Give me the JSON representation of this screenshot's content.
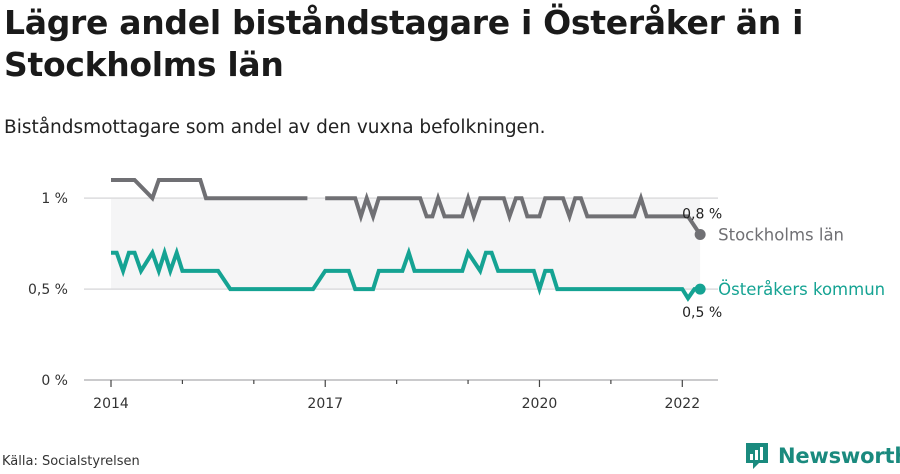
{
  "title": "Lägre andel biståndstagare i Österåker än i Stockholms län",
  "subtitle": "Biståndsmottagare som andel av den vuxna befolkningen.",
  "source": "Källa: Socialstyrelsen",
  "brand": {
    "name": "Newsworthy",
    "icon": "newsworthy-logo-icon",
    "color": "#1a8a7e"
  },
  "chart_data": {
    "type": "line",
    "xlim": [
      2014,
      2022.5
    ],
    "ylim": [
      0,
      1.1
    ],
    "x_ticks": [
      2014,
      2017,
      2020,
      2022
    ],
    "x_tick_labels": [
      "2014",
      "2017",
      "2020",
      "2022"
    ],
    "y_ticks": [
      0,
      0.5,
      1
    ],
    "y_tick_labels": [
      "0 %",
      "0,5 %",
      "1 %"
    ],
    "grid": "horizontal",
    "legend": "direct labels at line ends",
    "band": {
      "from": 0.5,
      "to": 1.0,
      "color": "#f5f5f6"
    },
    "series": [
      {
        "name": "Stockholms län",
        "color": "#707074",
        "end_label": "0,8 %",
        "x": [
          2014.0,
          2014.33,
          2014.58,
          2014.67,
          2014.75,
          2015.0,
          2015.25,
          2015.33,
          2015.5,
          2015.75,
          2016.0,
          2016.25,
          2016.5,
          2016.75,
          2016.83,
          2017.0,
          2017.08,
          2017.25,
          2017.42,
          2017.5,
          2017.58,
          2017.67,
          2017.75,
          2018.0,
          2018.25,
          2018.33,
          2018.42,
          2018.5,
          2018.58,
          2018.67,
          2018.75,
          2018.92,
          2019.0,
          2019.08,
          2019.17,
          2019.25,
          2019.5,
          2019.58,
          2019.67,
          2019.75,
          2019.83,
          2019.92,
          2020.0,
          2020.08,
          2020.17,
          2020.33,
          2020.42,
          2020.5,
          2020.58,
          2020.67,
          2020.92,
          2021.0,
          2021.08,
          2021.17,
          2021.33,
          2021.42,
          2021.5,
          2021.67,
          2021.75,
          2022.0,
          2022.08,
          2022.25
        ],
        "y": [
          1.1,
          1.1,
          1.0,
          1.1,
          1.1,
          1.1,
          1.1,
          1.0,
          1.0,
          1.0,
          1.0,
          1.0,
          1.0,
          1.0,
          null,
          1.0,
          1.0,
          1.0,
          1.0,
          0.9,
          1.0,
          0.9,
          1.0,
          1.0,
          1.0,
          1.0,
          0.9,
          0.9,
          1.0,
          0.9,
          0.9,
          0.9,
          1.0,
          0.9,
          1.0,
          1.0,
          1.0,
          0.9,
          1.0,
          1.0,
          0.9,
          0.9,
          0.9,
          1.0,
          1.0,
          1.0,
          0.9,
          1.0,
          1.0,
          0.9,
          0.9,
          0.9,
          0.9,
          0.9,
          0.9,
          1.0,
          0.9,
          0.9,
          0.9,
          0.9,
          0.9,
          0.8
        ]
      },
      {
        "name": "Österåkers kommun",
        "color": "#15a393",
        "end_label": "0,5 %",
        "x": [
          2014.0,
          2014.08,
          2014.17,
          2014.25,
          2014.33,
          2014.42,
          2014.58,
          2014.67,
          2014.75,
          2014.83,
          2014.92,
          2015.0,
          2015.08,
          2015.17,
          2015.25,
          2015.5,
          2015.67,
          2015.83,
          2016.0,
          2016.5,
          2016.83,
          2017.0,
          2017.33,
          2017.42,
          2017.5,
          2017.67,
          2017.75,
          2017.92,
          2018.0,
          2018.08,
          2018.17,
          2018.25,
          2018.5,
          2018.75,
          2018.92,
          2019.0,
          2019.17,
          2019.25,
          2019.33,
          2019.42,
          2019.5,
          2019.75,
          2019.92,
          2020.0,
          2020.08,
          2020.17,
          2020.25,
          2020.42,
          2020.75,
          2021.0,
          2021.25,
          2021.5,
          2021.75,
          2022.0,
          2022.08,
          2022.17,
          2022.25
        ],
        "y": [
          0.7,
          0.7,
          0.6,
          0.7,
          0.7,
          0.6,
          0.7,
          0.6,
          0.7,
          0.6,
          0.7,
          0.6,
          0.6,
          0.6,
          0.6,
          0.6,
          0.5,
          0.5,
          0.5,
          0.5,
          0.5,
          0.6,
          0.6,
          0.5,
          0.5,
          0.5,
          0.6,
          0.6,
          0.6,
          0.6,
          0.7,
          0.6,
          0.6,
          0.6,
          0.6,
          0.7,
          0.6,
          0.7,
          0.7,
          0.6,
          0.6,
          0.6,
          0.6,
          0.5,
          0.6,
          0.6,
          0.5,
          0.5,
          0.5,
          0.5,
          0.5,
          0.5,
          0.5,
          0.5,
          0.45,
          0.5,
          0.5
        ]
      }
    ]
  }
}
